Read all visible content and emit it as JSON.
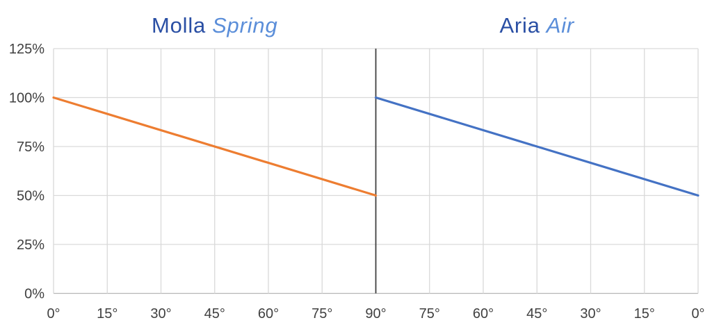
{
  "chart_data": {
    "type": "line",
    "x_tick_labels": [
      "0°",
      "15°",
      "30°",
      "45°",
      "60°",
      "75°",
      "90°",
      "75°",
      "60°",
      "45°",
      "30°",
      "15°",
      "0°"
    ],
    "y_tick_labels": [
      "125%",
      "100%",
      "75%",
      "50%",
      "25%",
      "0%"
    ],
    "y_ticks": [
      125,
      100,
      75,
      50,
      25,
      0
    ],
    "ylim": [
      0,
      125
    ],
    "grid": true,
    "legend": "none",
    "divider_tick": 6,
    "panels": [
      {
        "title_primary": "Molla",
        "title_secondary": "Spring",
        "line_color": "#ED7D31",
        "points": [
          {
            "tick": 0,
            "x_label": "0°",
            "value": 100
          },
          {
            "tick": 6,
            "x_label": "90°",
            "value": 50
          }
        ]
      },
      {
        "title_primary": "Aria",
        "title_secondary": "Air",
        "line_color": "#4472C4",
        "points": [
          {
            "tick": 6,
            "x_label": "90°",
            "value": 100
          },
          {
            "tick": 12,
            "x_label": "0°",
            "value": 50
          }
        ]
      }
    ]
  },
  "colors": {
    "background": "#ffffff",
    "gridline": "#d9d9d9",
    "axis_line": "#b5b5b5",
    "tick_label": "#404040",
    "divider": "#404040",
    "title_primary": "#2a4fa4",
    "title_secondary": "#5b8ed9"
  }
}
